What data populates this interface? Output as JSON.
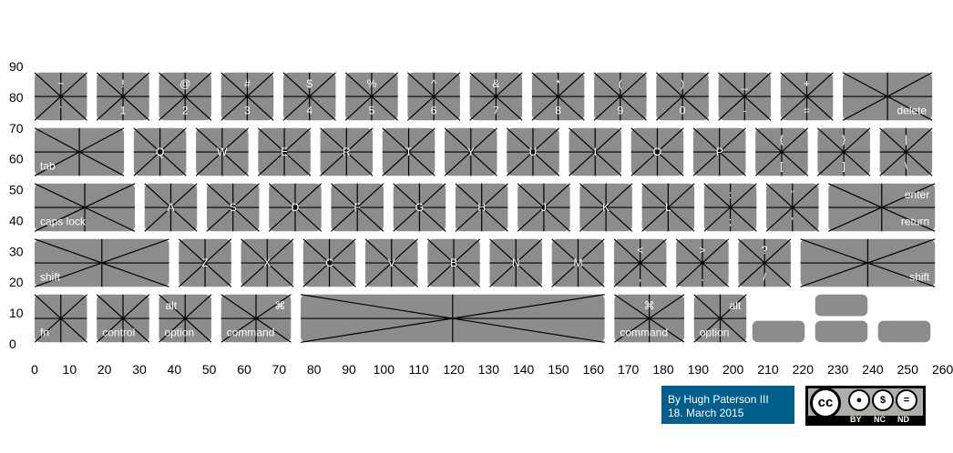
{
  "x_axis": {
    "ticks": [
      "0",
      "10",
      "20",
      "30",
      "40",
      "50",
      "60",
      "70",
      "80",
      "90",
      "100",
      "110",
      "120",
      "130",
      "140",
      "150",
      "160",
      "170",
      "180",
      "190",
      "200",
      "210",
      "220",
      "230",
      "240",
      "250",
      "260"
    ]
  },
  "y_axis": {
    "ticks": [
      "0",
      "10",
      "20",
      "30",
      "40",
      "50",
      "60",
      "70",
      "80",
      "90"
    ]
  },
  "keyboard": {
    "rows": [
      [
        {
          "tl": "~",
          "bl": "`"
        },
        {
          "tl": "!",
          "bl": "1"
        },
        {
          "tl": "@",
          "bl": "2"
        },
        {
          "tl": "#",
          "bl": "3"
        },
        {
          "tl": "$",
          "bl": "4"
        },
        {
          "tl": "%",
          "bl": "5"
        },
        {
          "tl": "^",
          "bl": "6"
        },
        {
          "tl": "&",
          "bl": "7"
        },
        {
          "tl": "*",
          "bl": "8"
        },
        {
          "tl": "(",
          "bl": "9"
        },
        {
          "tl": ")",
          "bl": "0"
        },
        {
          "tl": "_",
          "bl": "-"
        },
        {
          "tl": "+",
          "bl": "="
        },
        {
          "br": "delete"
        }
      ],
      [
        {
          "bl": "tab"
        },
        {
          "c": "Q"
        },
        {
          "c": "W"
        },
        {
          "c": "E"
        },
        {
          "c": "R"
        },
        {
          "c": "T"
        },
        {
          "c": "Y"
        },
        {
          "c": "U"
        },
        {
          "c": "I"
        },
        {
          "c": "O"
        },
        {
          "c": "P"
        },
        {
          "tl": "{",
          "bl": "["
        },
        {
          "tl": "}",
          "bl": "]"
        },
        {
          "tl": "|",
          "bl": "\\"
        }
      ],
      [
        {
          "bl": "caps lock"
        },
        {
          "c": "A"
        },
        {
          "c": "S"
        },
        {
          "c": "D"
        },
        {
          "c": "F"
        },
        {
          "c": "G"
        },
        {
          "c": "H"
        },
        {
          "c": "J"
        },
        {
          "c": "K"
        },
        {
          "c": "L"
        },
        {
          "tl": ":",
          "bl": ";"
        },
        {
          "tl": "\"",
          "bl": "'"
        },
        {
          "tr": "enter",
          "br": "return"
        }
      ],
      [
        {
          "bl": "shift"
        },
        {
          "c": "Z"
        },
        {
          "c": "X"
        },
        {
          "c": "C"
        },
        {
          "c": "V"
        },
        {
          "c": "B"
        },
        {
          "c": "N"
        },
        {
          "c": "M"
        },
        {
          "tl": "<",
          "bl": ","
        },
        {
          "tl": ">",
          "bl": "."
        },
        {
          "tl": "?",
          "bl": "/"
        },
        {
          "br": "shift"
        }
      ],
      [
        {
          "bl": "fn"
        },
        {
          "bl": "control"
        },
        {
          "tl": "alt",
          "bl": "option"
        },
        {
          "tr": "⌘",
          "bl": "command"
        },
        {},
        {
          "tl": "⌘",
          "bl": "command"
        },
        {
          "tr": "alt",
          "bl": "option"
        }
      ]
    ]
  },
  "credit": {
    "line1": "By Hugh Paterson III",
    "line2": "18. March 2015"
  },
  "license": {
    "main": "cc",
    "tags": [
      "BY",
      "NC",
      "ND"
    ]
  }
}
